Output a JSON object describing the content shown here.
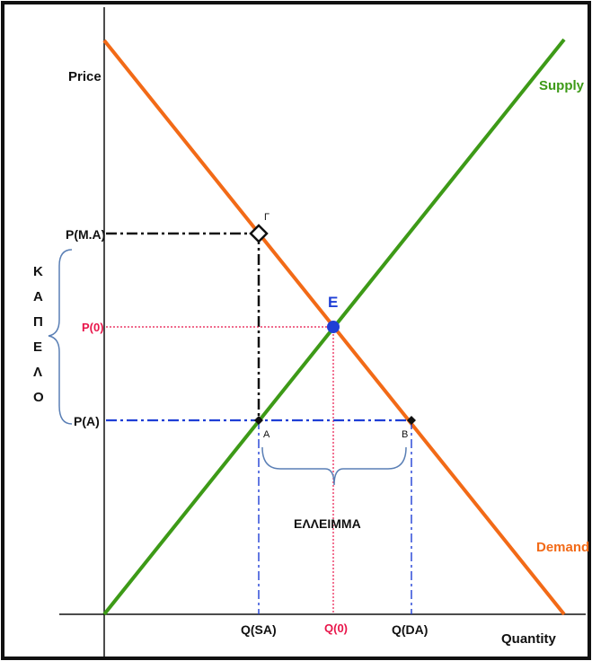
{
  "axes": {
    "y_label": "Price",
    "x_label": "Quantity"
  },
  "curves": {
    "supply_label": "Supply",
    "demand_label": "Demand",
    "supply_color": "#3d9a17",
    "demand_color": "#f26a17"
  },
  "prices": {
    "p_max": "P(M.A)",
    "p_eq": "P(0)",
    "p_a": "P(A)"
  },
  "quantities": {
    "q_sa": "Q(SA)",
    "q_eq": "Q(0)",
    "q_da": "Q(DA)"
  },
  "points": {
    "equilibrium": "E",
    "gamma": "Γ",
    "a": "A",
    "b": "B"
  },
  "annotations": {
    "shortage": "ΕΛΛΕΙΜΜΑ",
    "ceiling_letters": [
      "Κ",
      "Α",
      "Π",
      "Ε",
      "Λ",
      "Ο"
    ]
  },
  "colors": {
    "equilibrium_point": "#1f3fd6",
    "equilibrium_lines": "#e8154a",
    "price_floor_lines": "#1f3fd6",
    "max_price_lines": "#111111",
    "brace": "#5a7fb5"
  }
}
